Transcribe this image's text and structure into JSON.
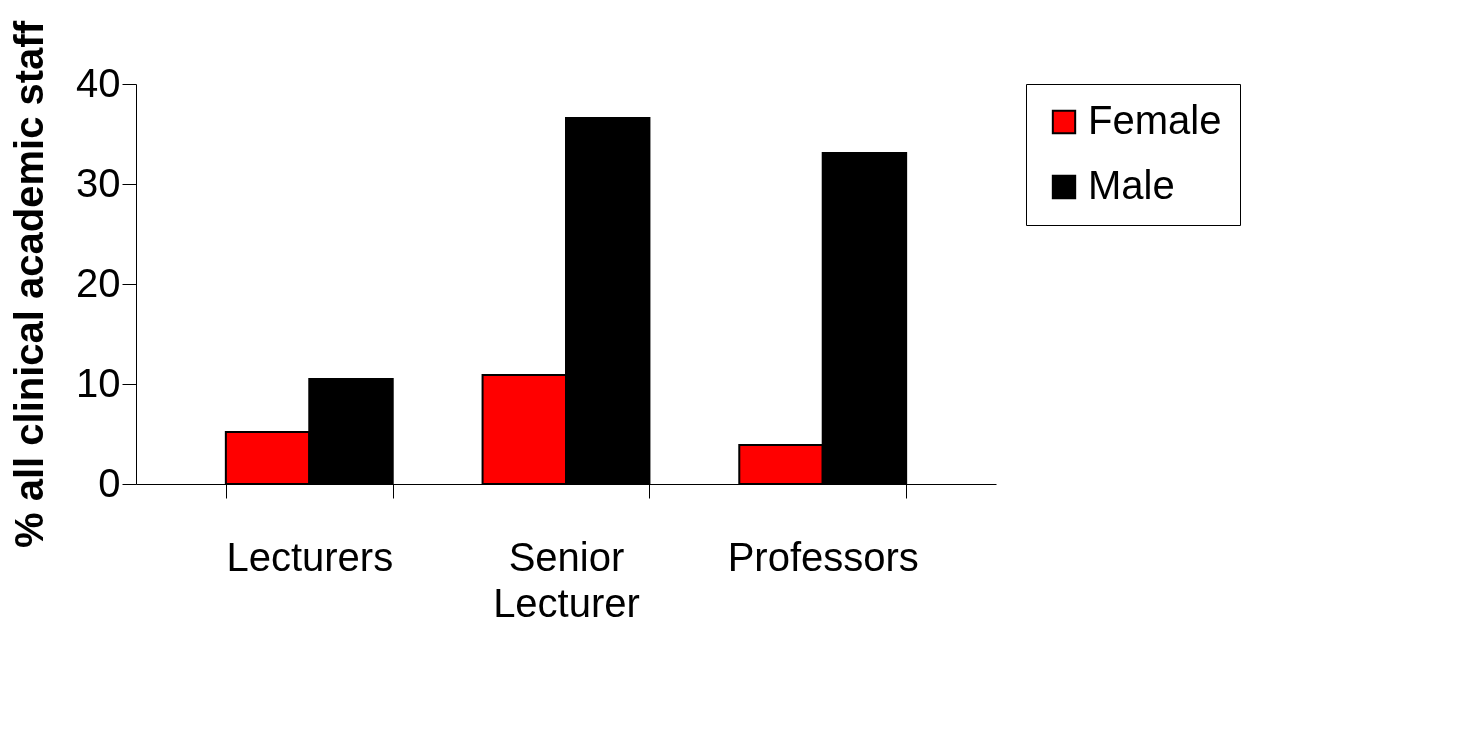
{
  "chart_data": {
    "type": "bar",
    "ylabel": "% all clinical academic staff",
    "categories": [
      "Lecturers",
      "Senior Lecturer",
      "Professors"
    ],
    "series": [
      {
        "name": "Female",
        "color": "#ff0000",
        "values": [
          5.2,
          10.9,
          3.9
        ]
      },
      {
        "name": "Male",
        "color": "#000000",
        "values": [
          10.5,
          36.6,
          33.1
        ]
      }
    ],
    "ylim": [
      0,
      40
    ],
    "yticks": [
      0,
      10,
      20,
      30,
      40
    ],
    "grid": false,
    "legend": "right"
  }
}
